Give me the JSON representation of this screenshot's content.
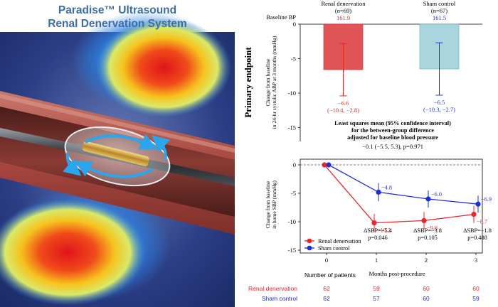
{
  "device_panel": {
    "title_line1": "Paradise™ Ultrasound",
    "title_line2": "Renal Denervation System"
  },
  "colors": {
    "renal": "#e8262b",
    "sham": "#1f2fd6",
    "renal_bar": "#e05456",
    "sham_bar": "#a9d6de",
    "title_blue": "#3b6ea8"
  },
  "chart_data": [
    {
      "type": "bar",
      "side_label": "Primary endpoint",
      "row_label": "Baseline BP",
      "categories": [
        "Renal denervation",
        "Sham control"
      ],
      "n_labels": [
        "(n=69)",
        "(n=67)"
      ],
      "baseline_bp": [
        "161.9",
        "161.5"
      ],
      "values": [
        -6.6,
        -6.5
      ],
      "ci": [
        [
          -10.4,
          -2.8
        ],
        [
          -10.3,
          -2.7
        ]
      ],
      "value_labels": [
        "−6.6",
        "−6.5"
      ],
      "ci_labels": [
        "(−10.4, −2.8)",
        "(−10.3, −2.7)"
      ],
      "ylabel_lines": [
        "Change from baseline",
        "in 24-hr systolic ABP at 3 months (mmHg)"
      ],
      "ylim": [
        -17,
        0
      ],
      "yticks": [
        0,
        -5,
        -10,
        -15
      ],
      "ytick_labels": [
        "0",
        "-5",
        "-10",
        "-15"
      ],
      "annotation_lines": [
        "Least squares mean (95% confidence interval)",
        "for the between-group difference",
        "adjusted for baseline blood pressure"
      ],
      "annotation_result": "−0.1 (−5.5, 5.3), p=0.971"
    },
    {
      "type": "line",
      "xlabel": "Months post-procedure",
      "ylabel_lines": [
        "Change from baseline",
        "in home SBP (mmHg)"
      ],
      "x": [
        0,
        1,
        2,
        3
      ],
      "xtick_labels": [
        "0",
        "1",
        "2",
        "3"
      ],
      "ylim": [
        -15.5,
        1
      ],
      "yticks": [
        0,
        -5,
        -10,
        -15
      ],
      "ytick_labels": [
        "0",
        "-5",
        "-10",
        "-15"
      ],
      "series": [
        {
          "name": "Renal denervation",
          "values": [
            0,
            -10.2,
            -9.8,
            -8.7
          ],
          "errors": [
            0,
            1.6,
            1.5,
            1.5
          ],
          "point_labels": [
            "",
            "−10.2",
            "−9.8",
            "−8.7"
          ]
        },
        {
          "name": "Sham control",
          "values": [
            0,
            -4.8,
            -6.0,
            -6.9
          ],
          "errors": [
            0,
            1.6,
            1.5,
            1.5
          ],
          "point_labels": [
            "",
            "−4.8",
            "−6.0",
            "−6.9"
          ]
        }
      ],
      "annotations": [
        {
          "delta": "ΔSBP=−5.4",
          "p": "p=0.046"
        },
        {
          "delta": "ΔSBP=−3.8",
          "p": "p=0.105"
        },
        {
          "delta": "ΔSBP=−1.8",
          "p": "p=0.488"
        }
      ],
      "legend_position": "bottom-left"
    }
  ],
  "patients_table": {
    "header": "Number of patients",
    "rows": [
      {
        "label": "Renal denervation",
        "values": [
          "62",
          "59",
          "60",
          "60"
        ]
      },
      {
        "label": "Sham control",
        "values": [
          "62",
          "57",
          "60",
          "59"
        ]
      }
    ]
  }
}
